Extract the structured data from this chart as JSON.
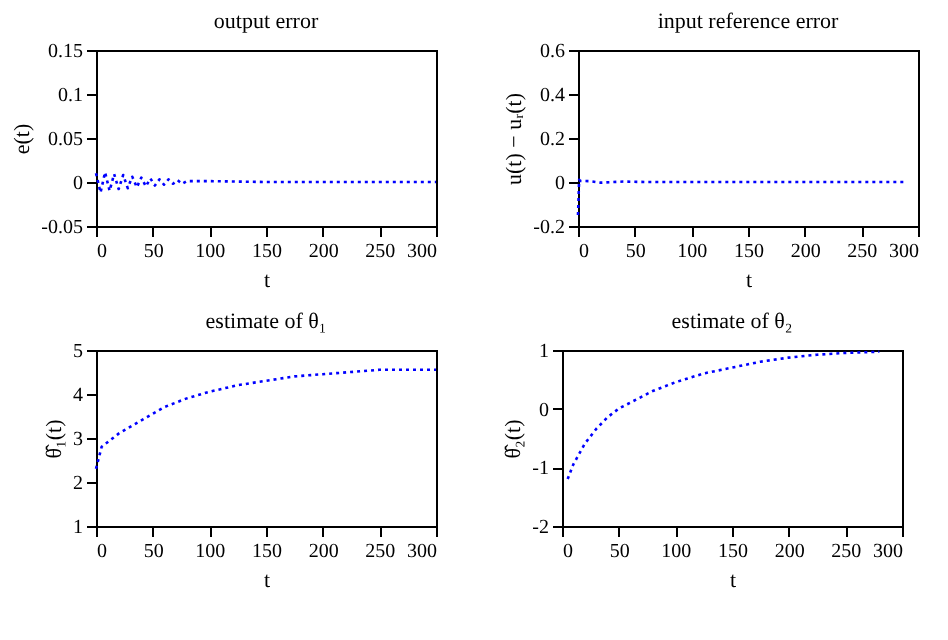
{
  "chart_data": [
    {
      "type": "line",
      "title": "output error",
      "xlabel": "t",
      "ylabel": "e(t)",
      "x": [
        0,
        4,
        8,
        12,
        16,
        20,
        24,
        28,
        32,
        36,
        40,
        44,
        48,
        52,
        56,
        60,
        64,
        68,
        72,
        76,
        80,
        100,
        150,
        200,
        250,
        300
      ],
      "series": [
        {
          "color": "#0000ff",
          "values": [
            0.01,
            -0.012,
            0.011,
            -0.01,
            0.009,
            -0.008,
            0.008,
            -0.007,
            0.006,
            -0.006,
            0.005,
            -0.005,
            0.004,
            -0.004,
            0.003,
            -0.003,
            0.003,
            -0.002,
            0.002,
            -0.002,
            0.001,
            0.001,
            0,
            0,
            0,
            0
          ]
        }
      ],
      "xlim": [
        0,
        300
      ],
      "xticks": [
        0,
        50,
        100,
        150,
        200,
        250,
        300
      ],
      "ylim": [
        -0.05,
        0.15
      ],
      "yticks": [
        -0.05,
        0,
        0.05,
        0.1,
        0.15
      ],
      "grid": false,
      "line_style": "dotted"
    },
    {
      "type": "line",
      "title": "input reference error",
      "xlabel": "t",
      "ylabel": "u(t) − uᵣ(t)",
      "x": [
        0,
        1,
        2,
        10,
        20,
        40,
        60,
        100,
        150,
        200,
        250,
        290
      ],
      "series": [
        {
          "color": "#0000ff",
          "values": [
            -0.15,
            0.01,
            0.005,
            0.004,
            -0.003,
            0.002,
            0,
            0,
            0,
            0,
            0,
            0
          ]
        }
      ],
      "xlim": [
        0,
        300
      ],
      "xticks": [
        0,
        50,
        100,
        150,
        200,
        250,
        300
      ],
      "ylim": [
        -0.2,
        0.6
      ],
      "yticks": [
        -0.2,
        0,
        0.2,
        0.4,
        0.6
      ],
      "grid": false,
      "line_style": "dotted"
    },
    {
      "type": "line",
      "title": "estimate of θ₁",
      "xlabel": "t",
      "ylabel": "θ̂₁(t)",
      "x": [
        0,
        5,
        20,
        40,
        60,
        80,
        100,
        125,
        150,
        175,
        200,
        225,
        250,
        275,
        300
      ],
      "series": [
        {
          "color": "#0000ff",
          "values": [
            2.3,
            2.8,
            3.1,
            3.4,
            3.7,
            3.9,
            4.05,
            4.2,
            4.3,
            4.4,
            4.45,
            4.5,
            4.55,
            4.55,
            4.55
          ]
        }
      ],
      "xlim": [
        0,
        300
      ],
      "xticks": [
        0,
        50,
        100,
        150,
        200,
        250,
        300
      ],
      "ylim": [
        1,
        5
      ],
      "yticks": [
        1,
        2,
        3,
        4,
        5
      ],
      "grid": false,
      "line_style": "dotted"
    },
    {
      "type": "line",
      "title": "estimate of θ₂",
      "xlabel": "t",
      "ylabel": "θ̂₂(t)",
      "x": [
        5,
        10,
        20,
        30,
        40,
        50,
        60,
        80,
        100,
        125,
        150,
        175,
        200,
        225,
        250,
        280
      ],
      "series": [
        {
          "color": "#0000ff",
          "values": [
            -1.2,
            -0.95,
            -0.6,
            -0.35,
            -0.15,
            0,
            0.1,
            0.3,
            0.45,
            0.6,
            0.7,
            0.8,
            0.87,
            0.92,
            0.95,
            0.97
          ]
        }
      ],
      "xlim": [
        0,
        300
      ],
      "xticks": [
        0,
        50,
        100,
        150,
        200,
        250,
        300
      ],
      "ylim": [
        -2,
        1
      ],
      "yticks": [
        -2,
        -1,
        0,
        1
      ],
      "grid": false,
      "line_style": "dotted"
    }
  ]
}
